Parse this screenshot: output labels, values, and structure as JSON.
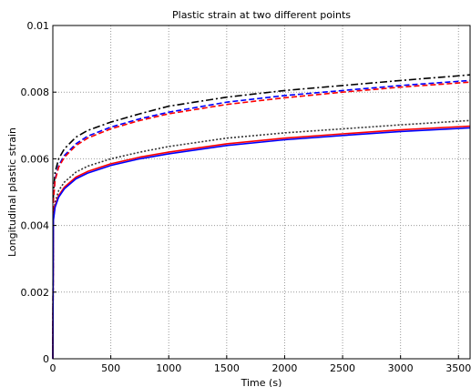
{
  "chart_data": {
    "type": "line",
    "title": "Plastic strain at two different points",
    "xlabel": "Time (s)",
    "ylabel": "Longitudinal plastic strain",
    "xlim": [
      0,
      3600
    ],
    "ylim": [
      0,
      0.01
    ],
    "x_ticks": [
      0,
      500,
      1000,
      1500,
      2000,
      2500,
      3000,
      3500
    ],
    "x_tick_labels": [
      "0",
      "500",
      "1000",
      "1500",
      "2000",
      "2500",
      "3000",
      "3500"
    ],
    "y_ticks": [
      0,
      0.002,
      0.004,
      0.006,
      0.008,
      0.01
    ],
    "y_tick_labels": [
      "0",
      "0.002",
      "0.004",
      "0.006",
      "0.008",
      "0.01"
    ],
    "grid": true,
    "legend": "none",
    "x": [
      0,
      5,
      20,
      50,
      100,
      200,
      300,
      500,
      750,
      1000,
      1500,
      2000,
      2500,
      3000,
      3600
    ],
    "series": [
      {
        "color": "#000000",
        "dash": "8,3,2,3",
        "values": [
          0,
          0.005,
          0.0056,
          0.006,
          0.0063,
          0.00665,
          0.00685,
          0.0071,
          0.00735,
          0.00758,
          0.00785,
          0.00805,
          0.0082,
          0.00835,
          0.00852
        ]
      },
      {
        "color": "#0000ff",
        "dash": "6,3",
        "values": [
          0,
          0.0048,
          0.0054,
          0.0058,
          0.0061,
          0.00645,
          0.00668,
          0.00695,
          0.0072,
          0.0074,
          0.0077,
          0.0079,
          0.00805,
          0.0082,
          0.00835
        ]
      },
      {
        "color": "#ff0000",
        "dash": "6,3",
        "values": [
          0,
          0.00475,
          0.00535,
          0.00575,
          0.00605,
          0.0064,
          0.00662,
          0.0069,
          0.00715,
          0.00735,
          0.00763,
          0.00783,
          0.008,
          0.00815,
          0.0083
        ]
      },
      {
        "color": "#333333",
        "dash": "2,2",
        "values": [
          0,
          0.0043,
          0.0047,
          0.00505,
          0.0053,
          0.0056,
          0.00578,
          0.006,
          0.0062,
          0.00637,
          0.00662,
          0.00678,
          0.0069,
          0.00702,
          0.00715
        ]
      },
      {
        "color": "#ff0000",
        "dash": "",
        "values": [
          0,
          0.0042,
          0.0046,
          0.0049,
          0.00515,
          0.00545,
          0.00562,
          0.00585,
          0.00605,
          0.0062,
          0.00645,
          0.00662,
          0.00675,
          0.00687,
          0.00698
        ]
      },
      {
        "color": "#0000ff",
        "dash": "",
        "values": [
          0,
          0.00415,
          0.00455,
          0.00485,
          0.0051,
          0.0054,
          0.00557,
          0.0058,
          0.006,
          0.00615,
          0.0064,
          0.00657,
          0.0067,
          0.00682,
          0.00693
        ]
      }
    ]
  }
}
